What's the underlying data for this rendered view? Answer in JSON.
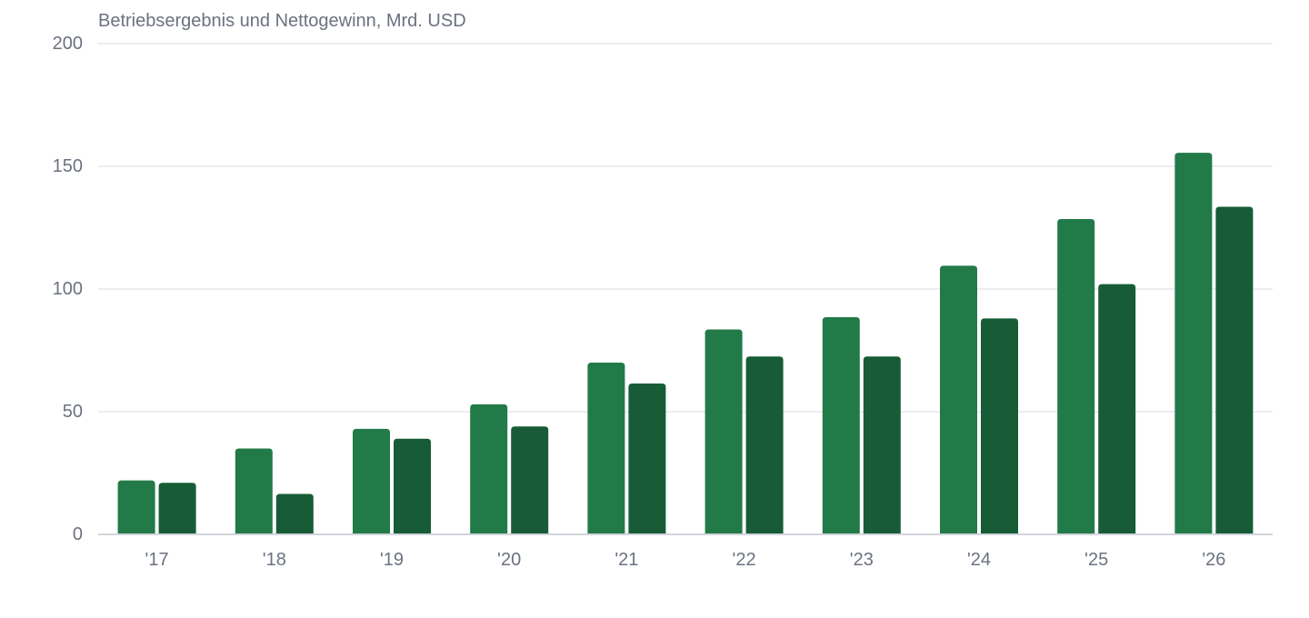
{
  "chart_data": {
    "type": "bar",
    "title": "Betriebsergebnis und Nettogewinn, Mrd. USD",
    "xlabel": "",
    "ylabel": "",
    "categories": [
      "'17",
      "'18",
      "'19",
      "'20",
      "'21",
      "'22",
      "'23",
      "'24",
      "'25",
      "'26"
    ],
    "series": [
      {
        "color": "#217a48",
        "values": [
          22,
          35,
          43,
          53,
          70,
          83.5,
          88.5,
          109.5,
          128.5,
          155.5
        ]
      },
      {
        "color": "#175c36",
        "values": [
          21,
          16.5,
          39,
          44,
          61.5,
          72.5,
          72.5,
          88,
          102,
          133.5
        ]
      }
    ],
    "ylim": [
      0,
      200
    ],
    "yticks": [
      0,
      50,
      100,
      150,
      200
    ],
    "grid": true,
    "legend": "none"
  }
}
